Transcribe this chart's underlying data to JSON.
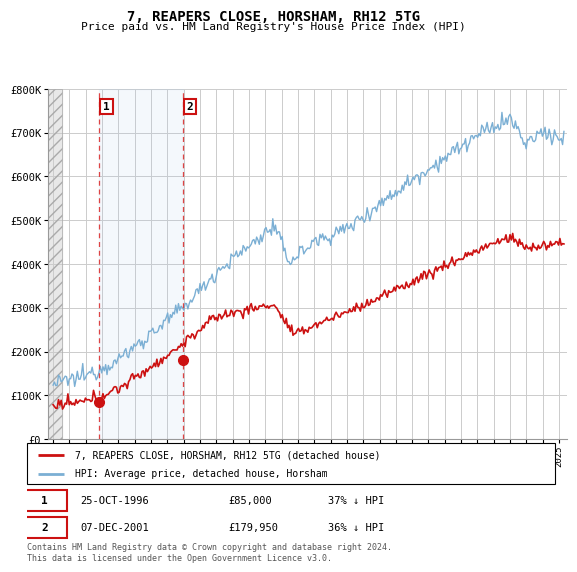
{
  "title": "7, REAPERS CLOSE, HORSHAM, RH12 5TG",
  "subtitle": "Price paid vs. HM Land Registry's House Price Index (HPI)",
  "ylim": [
    0,
    800000
  ],
  "yticks": [
    0,
    100000,
    200000,
    300000,
    400000,
    500000,
    600000,
    700000,
    800000
  ],
  "ytick_labels": [
    "£0",
    "£100K",
    "£200K",
    "£300K",
    "£400K",
    "£500K",
    "£600K",
    "£700K",
    "£800K"
  ],
  "xlim_start": 1993.7,
  "xlim_end": 2025.5,
  "hpi_color": "#7bafd4",
  "price_color": "#cc1111",
  "marker1_date": 1996.82,
  "marker1_value": 85000,
  "marker1_label": "1",
  "marker1_text": "25-OCT-1996",
  "marker1_price": "£85,000",
  "marker1_hpi": "37% ↓ HPI",
  "marker2_date": 2001.93,
  "marker2_value": 179950,
  "marker2_label": "2",
  "marker2_text": "07-DEC-2001",
  "marker2_price": "£179,950",
  "marker2_hpi": "36% ↓ HPI",
  "legend_line1": "7, REAPERS CLOSE, HORSHAM, RH12 5TG (detached house)",
  "legend_line2": "HPI: Average price, detached house, Horsham",
  "footer": "Contains HM Land Registry data © Crown copyright and database right 2024.\nThis data is licensed under the Open Government Licence v3.0.",
  "grid_color": "#cccccc",
  "hatch_end": 1994.55
}
